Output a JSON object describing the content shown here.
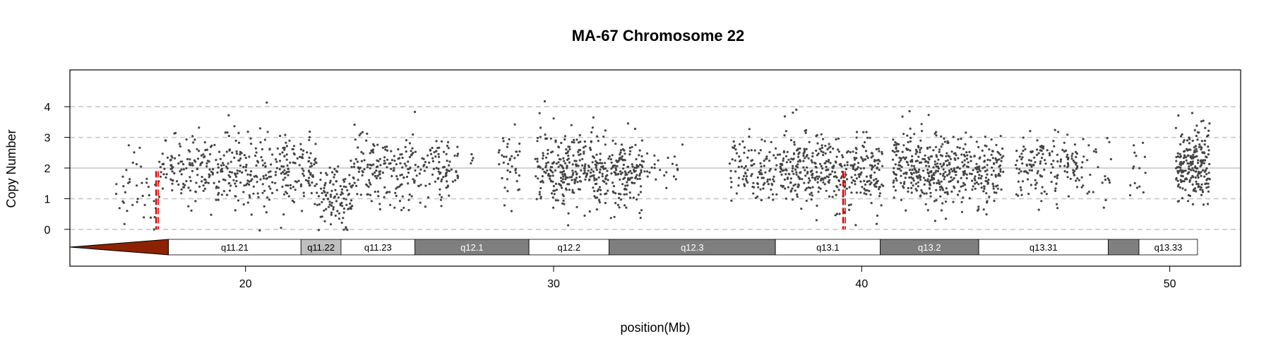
{
  "chart_data": {
    "type": "scatter",
    "title": "MA-67  Chromosome 22",
    "xlabel": "position(Mb)",
    "ylabel": "Copy Number",
    "xlim": [
      14.3,
      52.3
    ],
    "ylim": [
      -1.2,
      5.2
    ],
    "x_ticks": [
      20,
      30,
      40,
      50
    ],
    "y_ticks": [
      0,
      1,
      2,
      3,
      4
    ],
    "reference_lines": {
      "solid": [
        2
      ],
      "dashed": [
        0,
        1,
        3,
        4
      ]
    },
    "point_color": "#444444",
    "breakpoints": [
      {
        "x": 17.1,
        "y_from": 0,
        "y_to": 1.9,
        "color": "#e00000"
      },
      {
        "x": 39.4,
        "y_from": 0,
        "y_to": 1.9,
        "color": "#e00000"
      }
    ],
    "centromere": {
      "start": 14.3,
      "end": 17.5,
      "color": "#8B2200"
    },
    "ideogram_bands": [
      {
        "label": "q11.21",
        "start": 17.5,
        "end": 21.8,
        "color": "#ffffff",
        "text_color": "#000000"
      },
      {
        "label": "q11.22",
        "start": 21.8,
        "end": 23.1,
        "color": "#bfbfbf",
        "text_color": "#000000"
      },
      {
        "label": "q11.23",
        "start": 23.1,
        "end": 25.5,
        "color": "#ffffff",
        "text_color": "#000000"
      },
      {
        "label": "q12.1",
        "start": 25.5,
        "end": 29.2,
        "color": "#7f7f7f",
        "text_color": "#ffffff"
      },
      {
        "label": "q12.2",
        "start": 29.2,
        "end": 31.8,
        "color": "#ffffff",
        "text_color": "#000000"
      },
      {
        "label": "q12.3",
        "start": 31.8,
        "end": 37.2,
        "color": "#7f7f7f",
        "text_color": "#ffffff"
      },
      {
        "label": "q13.1",
        "start": 37.2,
        "end": 40.6,
        "color": "#ffffff",
        "text_color": "#000000"
      },
      {
        "label": "q13.2",
        "start": 40.6,
        "end": 43.8,
        "color": "#7f7f7f",
        "text_color": "#ffffff"
      },
      {
        "label": "q13.31",
        "start": 43.8,
        "end": 48.0,
        "color": "#ffffff",
        "text_color": "#000000"
      },
      {
        "label": "",
        "start": 48.0,
        "end": 49.0,
        "color": "#7f7f7f",
        "text_color": "#ffffff"
      },
      {
        "label": "q13.33",
        "start": 49.0,
        "end": 50.9,
        "color": "#ffffff",
        "text_color": "#000000"
      }
    ],
    "data_clusters": [
      {
        "x_start": 15.8,
        "x_end": 17.2,
        "mean": 1.2,
        "sd": 0.7,
        "n": 40
      },
      {
        "x_start": 17.2,
        "x_end": 18.1,
        "mean": 1.9,
        "sd": 0.5,
        "n": 60
      },
      {
        "x_start": 18.1,
        "x_end": 20.3,
        "mean": 2.0,
        "sd": 0.6,
        "n": 180
      },
      {
        "x_start": 20.3,
        "x_end": 22.3,
        "mean": 1.95,
        "sd": 0.65,
        "n": 170
      },
      {
        "x_start": 22.3,
        "x_end": 23.5,
        "mean": 1.1,
        "sd": 0.5,
        "n": 110
      },
      {
        "x_start": 23.5,
        "x_end": 25.6,
        "mean": 1.95,
        "sd": 0.6,
        "n": 170
      },
      {
        "x_start": 25.6,
        "x_end": 26.9,
        "mean": 2.0,
        "sd": 0.5,
        "n": 90
      },
      {
        "x_start": 27.3,
        "x_end": 27.4,
        "mean": 2.4,
        "sd": 0.3,
        "n": 4
      },
      {
        "x_start": 28.2,
        "x_end": 28.9,
        "mean": 2.0,
        "sd": 0.7,
        "n": 40
      },
      {
        "x_start": 29.4,
        "x_end": 31.3,
        "mean": 2.0,
        "sd": 0.6,
        "n": 230
      },
      {
        "x_start": 31.3,
        "x_end": 32.9,
        "mean": 1.85,
        "sd": 0.55,
        "n": 200
      },
      {
        "x_start": 32.9,
        "x_end": 34.2,
        "mean": 1.9,
        "sd": 0.45,
        "n": 25
      },
      {
        "x_start": 35.7,
        "x_end": 37.4,
        "mean": 1.9,
        "sd": 0.55,
        "n": 120
      },
      {
        "x_start": 37.4,
        "x_end": 39.0,
        "mean": 1.95,
        "sd": 0.6,
        "n": 200
      },
      {
        "x_start": 39.0,
        "x_end": 40.7,
        "mean": 1.9,
        "sd": 0.6,
        "n": 180
      },
      {
        "x_start": 41.0,
        "x_end": 42.8,
        "mean": 2.0,
        "sd": 0.6,
        "n": 260
      },
      {
        "x_start": 42.8,
        "x_end": 44.6,
        "mean": 1.95,
        "sd": 0.55,
        "n": 200
      },
      {
        "x_start": 45.0,
        "x_end": 47.0,
        "mean": 2.05,
        "sd": 0.5,
        "n": 150
      },
      {
        "x_start": 47.0,
        "x_end": 48.1,
        "mean": 1.9,
        "sd": 0.6,
        "n": 30
      },
      {
        "x_start": 48.7,
        "x_end": 49.3,
        "mean": 1.8,
        "sd": 0.6,
        "n": 15
      },
      {
        "x_start": 50.2,
        "x_end": 51.3,
        "mean": 2.1,
        "sd": 0.6,
        "n": 220
      }
    ]
  }
}
